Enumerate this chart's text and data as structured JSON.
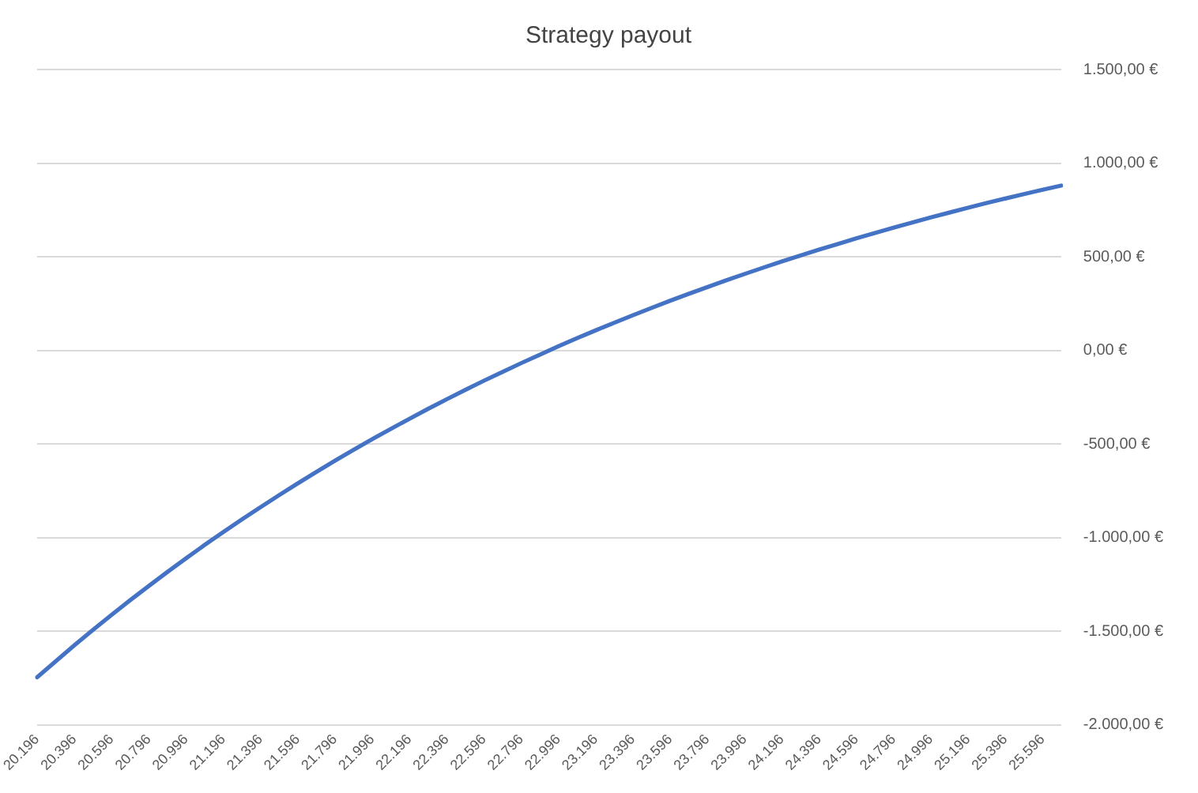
{
  "chart_data": {
    "type": "line",
    "title": "Strategy payout",
    "categories": [
      "20.196",
      null,
      "20.396",
      null,
      "20.596",
      null,
      "20.796",
      null,
      "20.996",
      null,
      "21.196",
      null,
      "21.396",
      null,
      "21.596",
      null,
      "21.796",
      null,
      "21.996",
      null,
      "22.196",
      null,
      "22.396",
      null,
      "22.596",
      null,
      "22.796",
      null,
      "22.996",
      null,
      "23.196",
      null,
      "23.396",
      null,
      "23.596",
      null,
      "23.796",
      null,
      "23.996",
      null,
      "24.196",
      null,
      "24.396",
      null,
      "24.596",
      null,
      "24.796",
      null,
      "24.996",
      null,
      "25.196",
      null,
      "25.396",
      null,
      "25.596",
      null
    ],
    "series": [
      {
        "color": "#4472c4",
        "values": [
          -1746,
          -1660,
          -1575,
          -1493,
          -1412,
          -1334,
          -1258,
          -1183,
          -1110,
          -1039,
          -970,
          -903,
          -837,
          -773,
          -710,
          -649,
          -589,
          -531,
          -474,
          -419,
          -365,
          -312,
          -261,
          -211,
          -162,
          -115,
          -68,
          -23,
          22,
          65,
          107,
          148,
          188,
          227,
          265,
          302,
          338,
          374,
          408,
          442,
          475,
          507,
          538,
          568,
          598,
          627,
          655,
          683,
          710,
          736,
          762,
          787,
          811,
          835,
          858,
          880
        ]
      }
    ],
    "ylim": [
      -2000,
      1500
    ],
    "yticks": [
      {
        "value": -2000,
        "label": "-2.000,00 €"
      },
      {
        "value": -1500,
        "label": "-1.500,00 €"
      },
      {
        "value": -1000,
        "label": "-1.000,00 €"
      },
      {
        "value": -500,
        "label": "-500,00 €"
      },
      {
        "value": 0,
        "label": "0,00 €"
      },
      {
        "value": 500,
        "label": "500,00 €"
      },
      {
        "value": 1000,
        "label": "1.000,00 €"
      },
      {
        "value": 1500,
        "label": "1.500,00 €"
      }
    ],
    "grid": "y",
    "legend": false,
    "marker": "none",
    "line_style": "solid"
  }
}
